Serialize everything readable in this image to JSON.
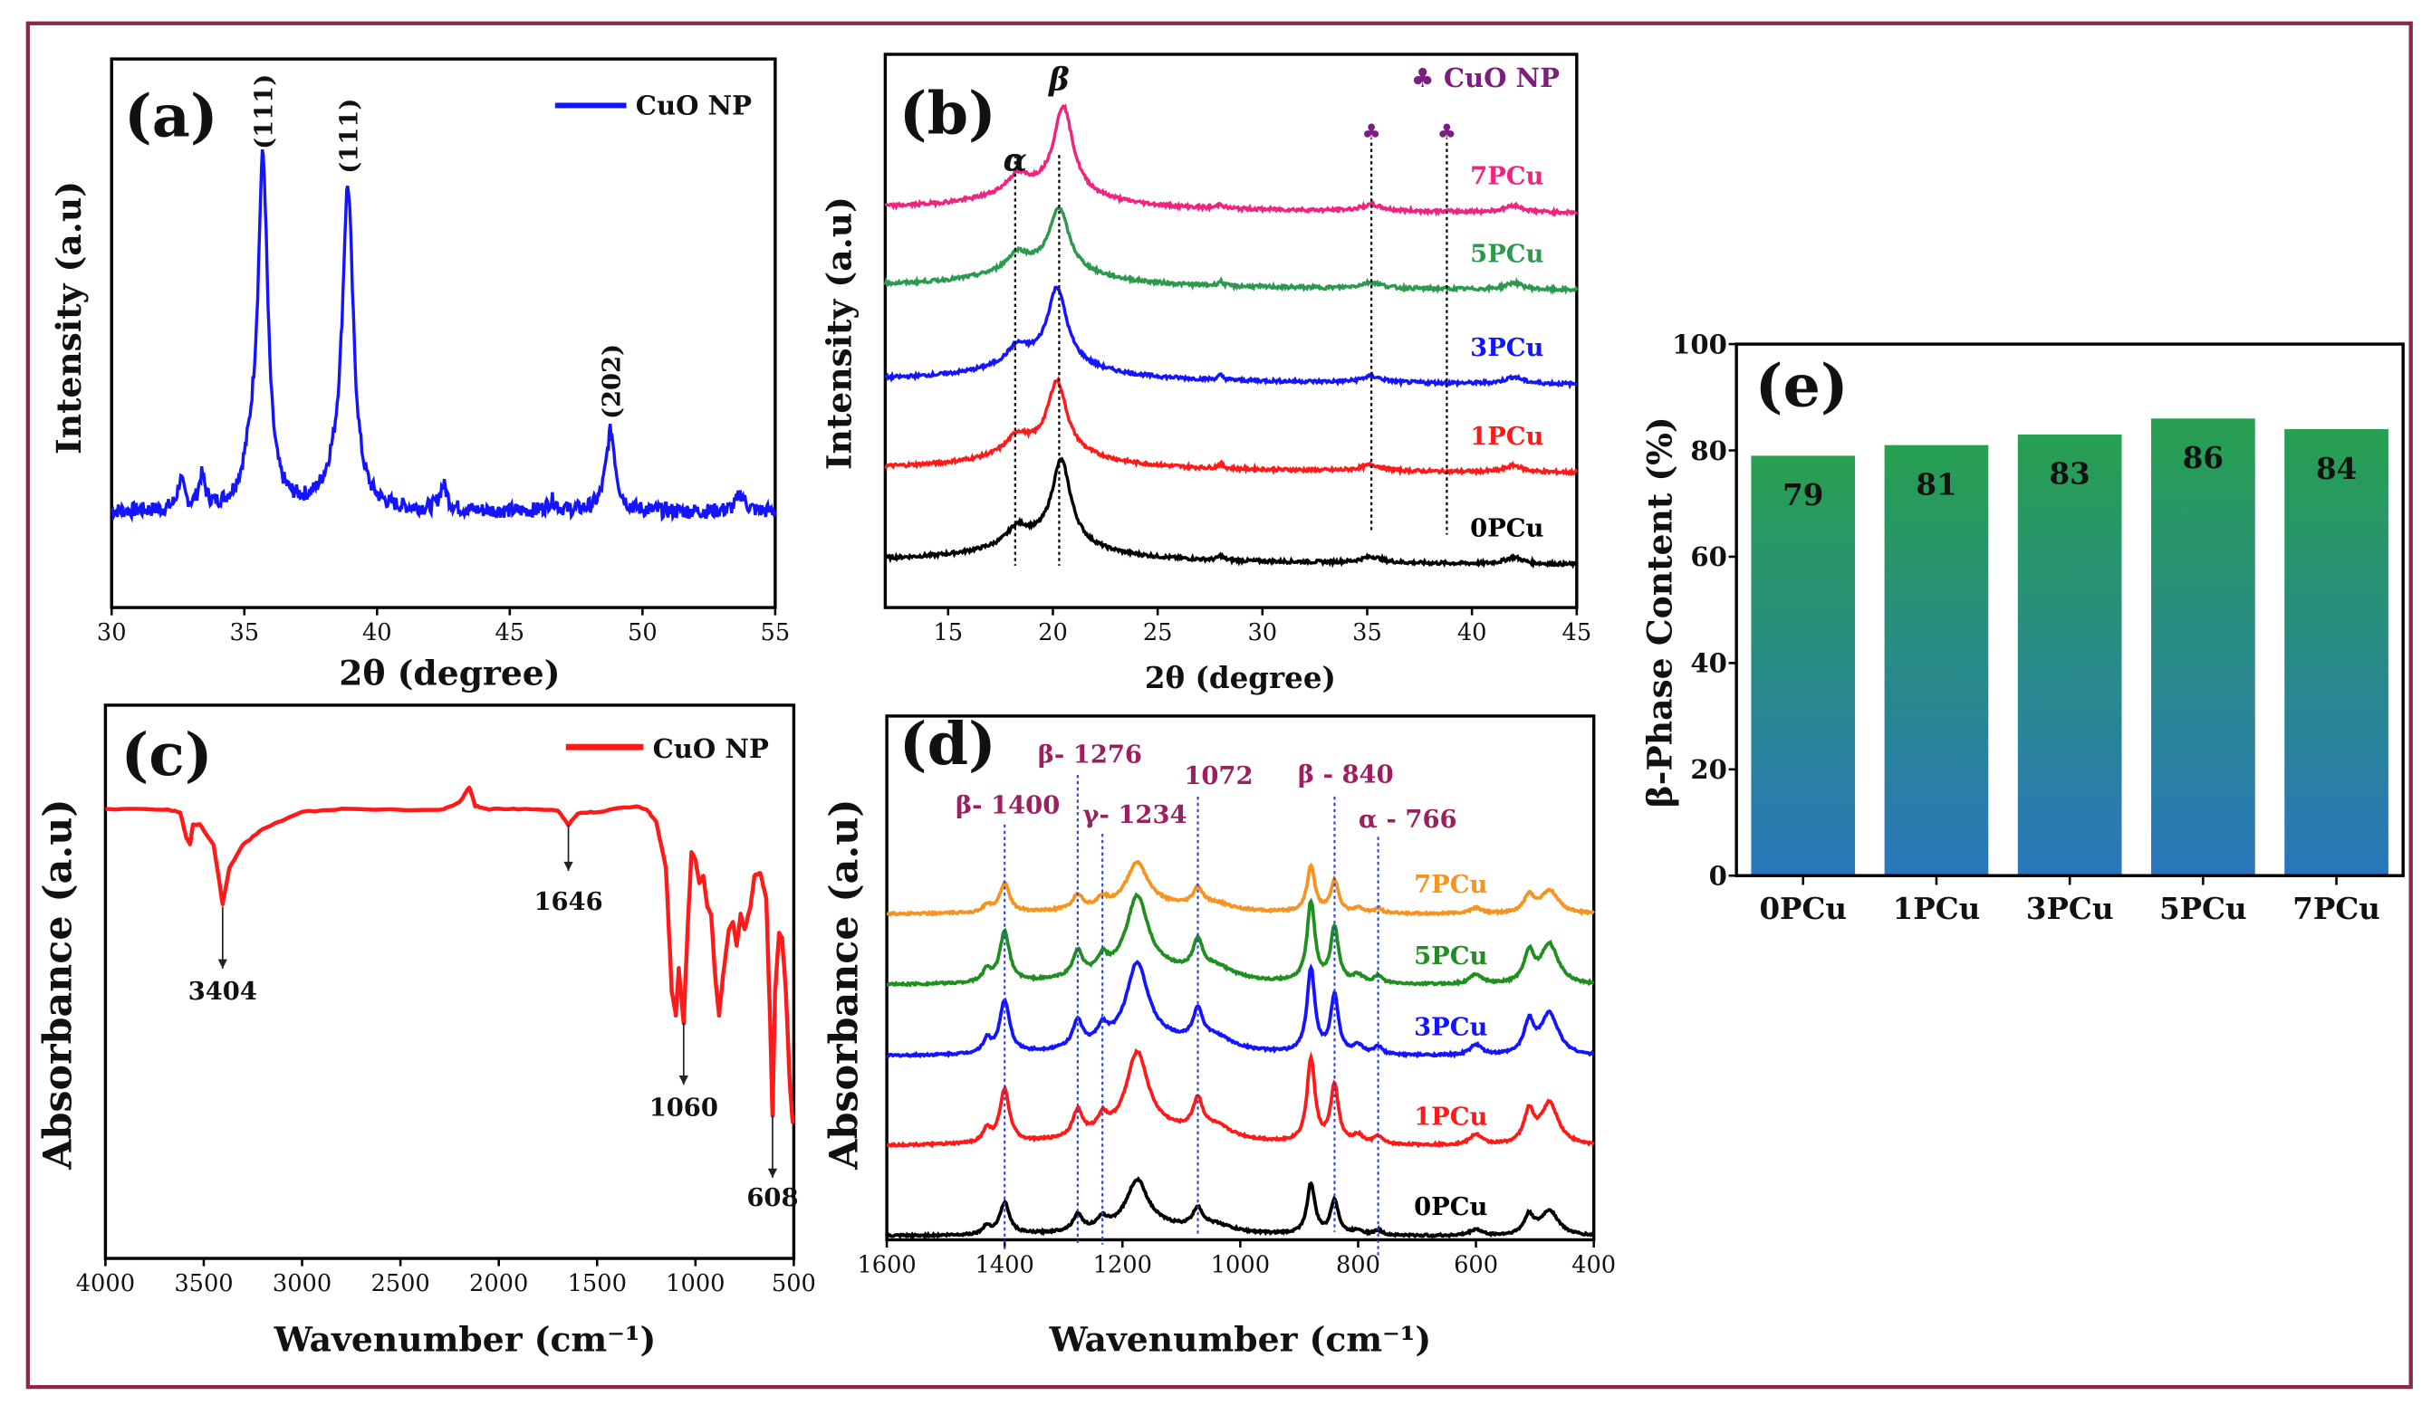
{
  "figure": {
    "border_color": "#8b2942"
  },
  "chart_data": [
    {
      "panel_label": "(a)",
      "type": "line",
      "xlabel": "2θ (degree)",
      "ylabel": "Intensity (a.u)",
      "xlim": [
        30,
        55
      ],
      "ylim": [
        -27.5,
        130
      ],
      "xticks": [
        30,
        35,
        40,
        45,
        50,
        55
      ],
      "legend": {
        "label": "CuO NP",
        "placement": "top-right",
        "color": "#1414ff"
      },
      "series": [
        {
          "name": "CuO NP",
          "color": "#1414ff",
          "baseline": 0,
          "noise": 2.2,
          "peaks": [
            [
              32.6,
              8,
              0.15
            ],
            [
              33.4,
              9,
              0.15
            ],
            [
              35.3,
              12,
              0.4
            ],
            [
              35.7,
              96,
              0.22
            ],
            [
              38.9,
              90,
              0.25
            ],
            [
              38.4,
              6,
              0.5
            ],
            [
              42.5,
              7,
              0.18
            ],
            [
              46.6,
              3,
              0.2
            ],
            [
              48.8,
              23,
              0.22
            ],
            [
              53.7,
              5,
              0.2
            ]
          ]
        }
      ],
      "annotations": [
        {
          "text": "(111)",
          "x": 35.7
        },
        {
          "text": "(111)",
          "x": 38.9
        },
        {
          "text": "(202)",
          "x": 48.8
        }
      ]
    },
    {
      "panel_label": "(b)",
      "type": "line",
      "xlabel": "2θ (degree)",
      "ylabel": "Intensity (a.u)",
      "xlim": [
        12,
        45
      ],
      "ylim": [
        0,
        100
      ],
      "xticks": [
        15,
        20,
        25,
        30,
        35,
        40,
        45
      ],
      "legend": {
        "label": "♣ CuO NP",
        "placement": "top-right",
        "color": "#7b1f7f"
      },
      "series": [
        {
          "name": "0PCu",
          "color": "#000000",
          "baseline": 8.4,
          "main_peak": [
            20.4,
            15
          ]
        },
        {
          "name": "1PCu",
          "color": "#ff1a1a",
          "baseline": 25,
          "main_peak": [
            20.2,
            12.6
          ]
        },
        {
          "name": "3PCu",
          "color": "#1414ff",
          "baseline": 41,
          "main_peak": [
            20.2,
            13.5
          ]
        },
        {
          "name": "5PCu",
          "color": "#2b9a4e",
          "baseline": 58,
          "main_peak": [
            20.3,
            11
          ]
        },
        {
          "name": "7PCu",
          "color": "#f0237f",
          "baseline": 72,
          "main_peak": [
            20.5,
            15.5
          ]
        }
      ],
      "reference_lines": [
        {
          "x": 18.2,
          "label": "α"
        },
        {
          "x": 20.3,
          "label": "β"
        },
        {
          "x": 35.2,
          "label": "♣"
        },
        {
          "x": 38.8,
          "label": "♣"
        }
      ]
    },
    {
      "panel_label": "(c)",
      "type": "line",
      "xlabel": "Wavenumber (cm⁻¹)",
      "ylabel": "Absorbance (a.u)",
      "xlim": [
        4000,
        500
      ],
      "ylim": [
        0,
        100
      ],
      "xticks": [
        4000,
        3500,
        3000,
        2500,
        2000,
        1500,
        1000,
        500
      ],
      "legend": {
        "label": "CuO NP",
        "placement": "top-right",
        "color": "#ff1a1a"
      },
      "series": [
        {
          "name": "CuO NP",
          "color": "#ff1a1a",
          "points": [
            [
              4000,
              81.2
            ],
            [
              3700,
              81.2
            ],
            [
              3620,
              80.7
            ],
            [
              3590,
              76.2
            ],
            [
              3570,
              74.8
            ],
            [
              3555,
              78.4
            ],
            [
              3520,
              78.4
            ],
            [
              3450,
              74.8
            ],
            [
              3404,
              64.1
            ],
            [
              3370,
              70.6
            ],
            [
              3300,
              74.8
            ],
            [
              3200,
              77.6
            ],
            [
              3000,
              80.7
            ],
            [
              2800,
              81.2
            ],
            [
              2300,
              81.0
            ],
            [
              2200,
              82.4
            ],
            [
              2150,
              85.2
            ],
            [
              2120,
              81.8
            ],
            [
              2050,
              81.2
            ],
            [
              1900,
              81.2
            ],
            [
              1700,
              81.0
            ],
            [
              1646,
              78.4
            ],
            [
              1600,
              80.4
            ],
            [
              1500,
              80.7
            ],
            [
              1300,
              81.8
            ],
            [
              1250,
              81.2
            ],
            [
              1200,
              79.0
            ],
            [
              1150,
              70.6
            ],
            [
              1120,
              48.2
            ],
            [
              1100,
              44.0
            ],
            [
              1085,
              52.4
            ],
            [
              1060,
              42.6
            ],
            [
              1040,
              59.4
            ],
            [
              1020,
              73.4
            ],
            [
              1000,
              72.0
            ],
            [
              980,
              67.8
            ],
            [
              960,
              69.2
            ],
            [
              940,
              63.6
            ],
            [
              920,
              62.2
            ],
            [
              900,
              51.0
            ],
            [
              880,
              44.0
            ],
            [
              860,
              51.0
            ],
            [
              830,
              59.4
            ],
            [
              810,
              60.8
            ],
            [
              790,
              56.6
            ],
            [
              770,
              62.2
            ],
            [
              750,
              59.4
            ],
            [
              720,
              63.6
            ],
            [
              700,
              69.2
            ],
            [
              670,
              69.7
            ],
            [
              640,
              65.0
            ],
            [
              620,
              42.6
            ],
            [
              608,
              25.8
            ],
            [
              595,
              48.2
            ],
            [
              575,
              58.8
            ],
            [
              560,
              58.0
            ],
            [
              540,
              48.2
            ],
            [
              520,
              31.4
            ],
            [
              505,
              24.4
            ]
          ]
        }
      ],
      "annotations": [
        {
          "text": "3404",
          "x": 3404
        },
        {
          "text": "1646",
          "x": 1646
        },
        {
          "text": "1060",
          "x": 1060
        },
        {
          "text": "608",
          "x": 608
        }
      ]
    },
    {
      "panel_label": "(d)",
      "type": "line",
      "xlabel": "Wavenumber (cm⁻¹)",
      "ylabel": "Absorbance (a.u)",
      "xlim": [
        1600,
        400
      ],
      "ylim": [
        0,
        100
      ],
      "xticks": [
        1600,
        1400,
        1200,
        1000,
        800,
        600,
        400
      ],
      "shared_peaks": [
        [
          1430,
          2.5,
          8
        ],
        [
          1400,
          10,
          10
        ],
        [
          1276,
          5,
          10
        ],
        [
          1234,
          3,
          10
        ],
        [
          1175,
          15,
          22
        ],
        [
          1072,
          6,
          10
        ],
        [
          1040,
          2,
          30
        ],
        [
          880,
          16,
          8
        ],
        [
          840,
          11,
          8
        ],
        [
          800,
          1.5,
          10
        ],
        [
          766,
          1.5,
          8
        ],
        [
          600,
          2,
          12
        ],
        [
          510,
          6,
          10
        ],
        [
          475,
          8,
          18
        ],
        [
          1150,
          3,
          120
        ]
      ],
      "series": [
        {
          "name": "0PCu",
          "color": "#000000",
          "baseline": 0.6,
          "scale": 0.6
        },
        {
          "name": "1PCu",
          "color": "#ff1a1a",
          "baseline": 17.8,
          "scale": 1.0
        },
        {
          "name": "3PCu",
          "color": "#1414ff",
          "baseline": 34.9,
          "scale": 1.0
        },
        {
          "name": "5PCu",
          "color": "#1f8f1f",
          "baseline": 48.5,
          "scale": 0.95
        },
        {
          "name": "7PCu",
          "color": "#f7931e",
          "baseline": 62.1,
          "scale": 0.55
        }
      ],
      "annotation_color": "#9c1f5f",
      "reference_lines": [
        {
          "x": 1400,
          "label": "β- 1400"
        },
        {
          "x": 1276,
          "label": "β- 1276"
        },
        {
          "x": 1234,
          "label": "γ- 1234"
        },
        {
          "x": 1072,
          "label": "1072"
        },
        {
          "x": 840,
          "label": "β - 840"
        },
        {
          "x": 766,
          "label": "α - 766"
        }
      ]
    },
    {
      "panel_label": "(e)",
      "type": "bar",
      "xlabel": "",
      "ylabel": "β-Phase Content (%)",
      "categories": [
        "0PCu",
        "1PCu",
        "3PCu",
        "5PCu",
        "7PCu"
      ],
      "values": [
        79,
        81,
        83,
        86,
        84
      ],
      "ylim": [
        0,
        100
      ],
      "yticks": [
        0,
        20,
        40,
        60,
        80,
        100
      ],
      "bar_gradient": [
        "#27a04f",
        "#2a76bc"
      ]
    }
  ]
}
